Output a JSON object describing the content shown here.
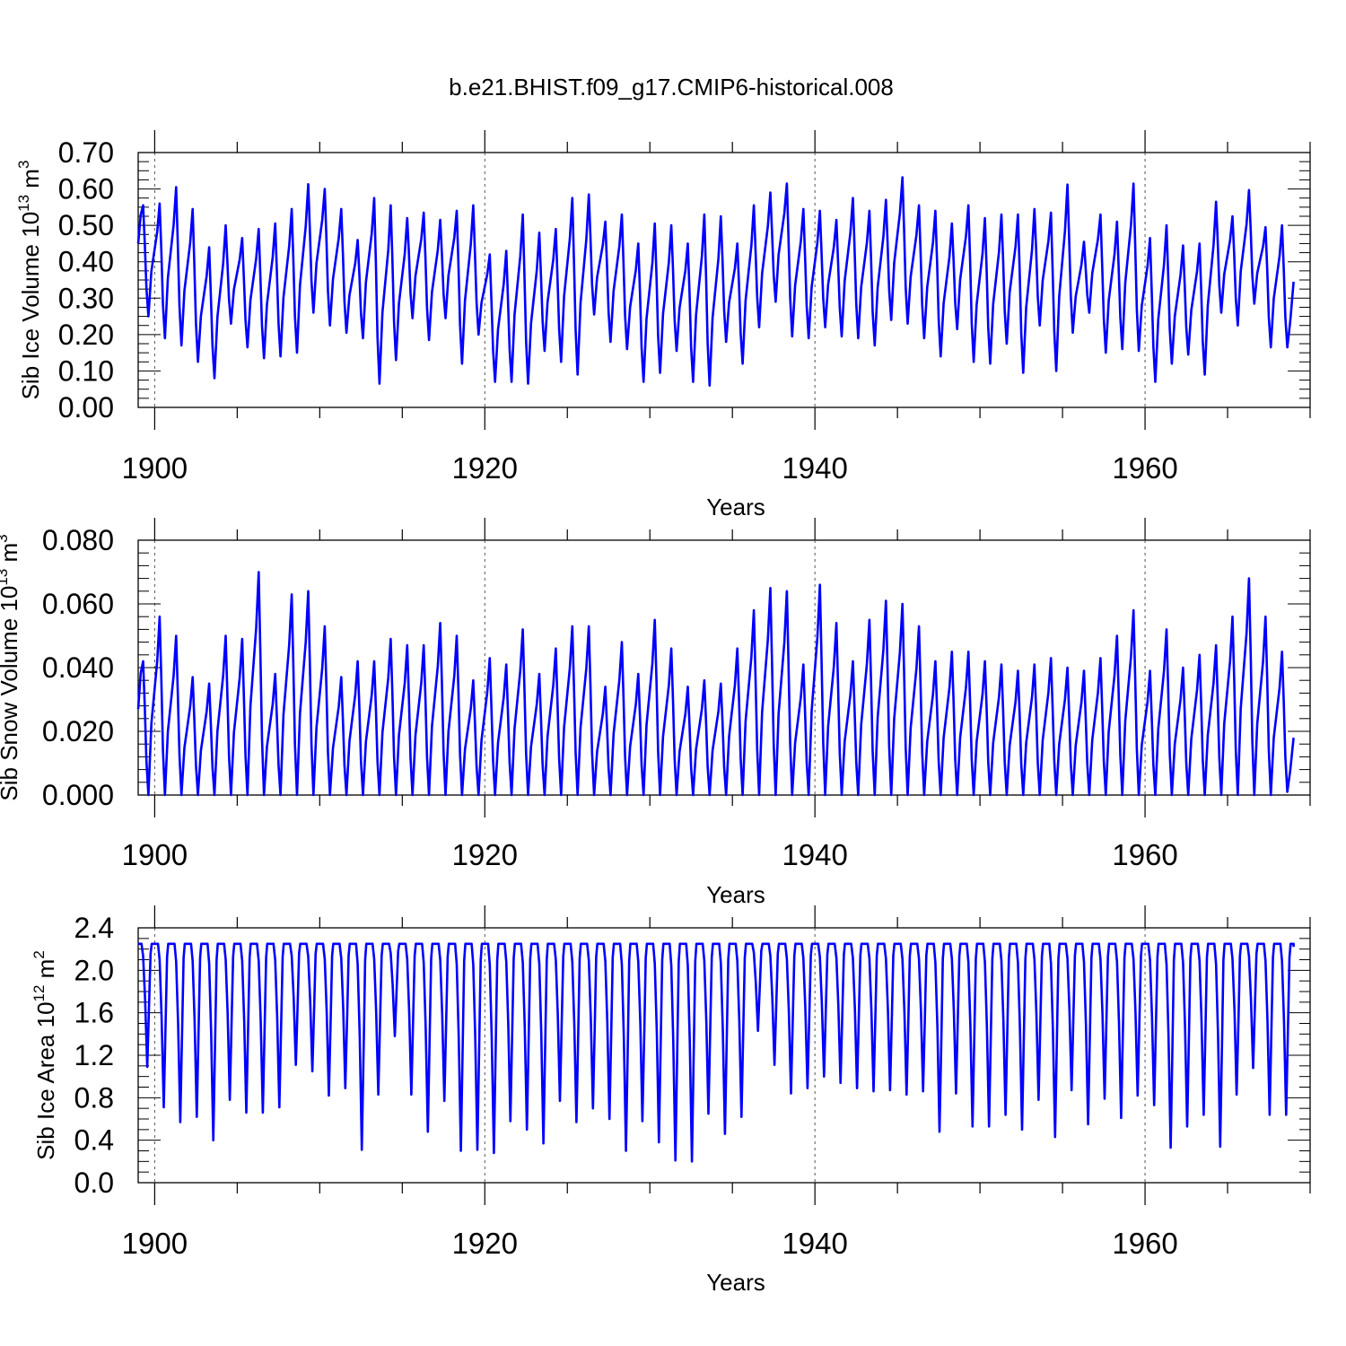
{
  "title": "b.e21.BHIST.f09_g17.CMIP6-historical.008",
  "colors": {
    "line": "#0000ff",
    "axis": "#000000",
    "refline": "#555555"
  },
  "chart_data": [
    {
      "type": "line",
      "ylabel": "Sib Ice Volume 10",
      "ylabel_exp": "13",
      "ylabel_unit": " m",
      "ylabel_unit_exp": "3",
      "xlabel": "Years",
      "xlim": [
        1899.0,
        1970.0
      ],
      "ylim": [
        0.0,
        0.7
      ],
      "yticks": [
        0.0,
        0.1,
        0.2,
        0.3,
        0.4,
        0.5,
        0.6,
        0.7
      ],
      "ytick_labels": [
        "0.00",
        "0.10",
        "0.20",
        "0.30",
        "0.40",
        "0.50",
        "0.60",
        "0.70"
      ],
      "yminor": 0.025,
      "xticks": [
        1900,
        1920,
        1940,
        1960
      ],
      "xtick_labels": [
        "1900",
        "1920",
        "1940",
        "1960"
      ],
      "xminor": 5,
      "seasonal": {
        "phase": "peak_early",
        "start_value": 0.45,
        "annual_max": [
          0.555,
          0.56,
          0.605,
          0.545,
          0.44,
          0.5,
          0.465,
          0.49,
          0.505,
          0.545,
          0.613,
          0.6,
          0.545,
          0.46,
          0.575,
          0.555,
          0.52,
          0.535,
          0.515,
          0.54,
          0.555,
          0.42,
          0.43,
          0.53,
          0.48,
          0.49,
          0.575,
          0.585,
          0.51,
          0.53,
          0.45,
          0.505,
          0.5,
          0.45,
          0.53,
          0.525,
          0.45,
          0.555,
          0.59,
          0.615,
          0.545,
          0.54,
          0.515,
          0.575,
          0.54,
          0.57,
          0.632,
          0.555,
          0.54,
          0.505,
          0.555,
          0.52,
          0.53,
          0.53,
          0.545,
          0.535,
          0.612,
          0.455,
          0.53,
          0.51,
          0.615,
          0.465,
          0.5,
          0.445,
          0.45,
          0.565,
          0.525,
          0.597,
          0.495,
          0.5
        ],
        "annual_min": [
          0.25,
          0.19,
          0.17,
          0.125,
          0.08,
          0.23,
          0.165,
          0.135,
          0.14,
          0.15,
          0.26,
          0.225,
          0.205,
          0.19,
          0.065,
          0.13,
          0.245,
          0.185,
          0.245,
          0.12,
          0.2,
          0.07,
          0.07,
          0.065,
          0.155,
          0.125,
          0.09,
          0.255,
          0.18,
          0.16,
          0.07,
          0.095,
          0.155,
          0.07,
          0.06,
          0.18,
          0.12,
          0.22,
          0.29,
          0.195,
          0.19,
          0.22,
          0.195,
          0.19,
          0.17,
          0.24,
          0.23,
          0.19,
          0.14,
          0.215,
          0.125,
          0.12,
          0.175,
          0.095,
          0.225,
          0.1,
          0.205,
          0.26,
          0.15,
          0.16,
          0.155,
          0.07,
          0.12,
          0.145,
          0.09,
          0.26,
          0.225,
          0.285,
          0.165,
          0.165
        ],
        "end_value": 0.345
      }
    },
    {
      "type": "line",
      "ylabel": "Sib Snow Volume 10",
      "ylabel_exp": "13",
      "ylabel_unit": " m",
      "ylabel_unit_exp": "3",
      "xlabel": "Years",
      "xlim": [
        1899.0,
        1970.0
      ],
      "ylim": [
        0.0,
        0.08
      ],
      "yticks": [
        0.0,
        0.02,
        0.04,
        0.06,
        0.08
      ],
      "ytick_labels": [
        "0.000",
        "0.020",
        "0.040",
        "0.060",
        "0.080"
      ],
      "yminor": 0.004,
      "xticks": [
        1900,
        1920,
        1940,
        1960
      ],
      "xtick_labels": [
        "1900",
        "1920",
        "1940",
        "1960"
      ],
      "xminor": 5,
      "seasonal": {
        "phase": "peak_early",
        "start_value": 0.027,
        "annual_max": [
          0.042,
          0.056,
          0.05,
          0.037,
          0.035,
          0.05,
          0.049,
          0.07,
          0.038,
          0.063,
          0.064,
          0.053,
          0.037,
          0.042,
          0.042,
          0.049,
          0.047,
          0.047,
          0.054,
          0.05,
          0.036,
          0.043,
          0.041,
          0.052,
          0.038,
          0.046,
          0.053,
          0.053,
          0.034,
          0.048,
          0.038,
          0.055,
          0.046,
          0.034,
          0.036,
          0.035,
          0.046,
          0.058,
          0.065,
          0.064,
          0.041,
          0.066,
          0.054,
          0.042,
          0.055,
          0.061,
          0.06,
          0.053,
          0.042,
          0.045,
          0.045,
          0.042,
          0.041,
          0.039,
          0.041,
          0.043,
          0.04,
          0.039,
          0.043,
          0.05,
          0.058,
          0.039,
          0.052,
          0.04,
          0.044,
          0.047,
          0.056,
          0.068,
          0.056,
          0.045
        ],
        "annual_min": [
          0.0,
          0.0,
          0.0,
          0.0,
          0.0,
          0.0,
          0.0,
          0.0,
          0.0,
          0.0,
          0.0,
          0.0,
          0.0,
          0.0,
          0.0,
          0.0,
          0.0,
          0.0,
          0.0,
          0.0,
          0.0,
          0.0,
          0.0,
          0.0,
          0.0,
          0.0,
          0.0,
          0.0,
          0.0,
          0.0,
          0.0,
          0.0,
          0.0,
          0.0,
          0.0,
          0.0,
          0.0,
          0.0,
          0.0,
          0.0,
          0.0,
          0.0,
          0.0,
          0.0,
          0.0,
          0.0,
          0.0,
          0.0,
          0.0,
          0.0,
          0.0,
          0.0,
          0.0,
          0.0,
          0.0,
          0.0,
          0.0,
          0.0,
          0.0,
          0.0,
          0.0,
          0.0,
          0.0,
          0.0,
          0.0,
          0.0,
          0.0,
          0.0,
          0.0,
          0.001
        ],
        "end_value": 0.018
      }
    },
    {
      "type": "line",
      "ylabel": "Sib Ice Area 10",
      "ylabel_exp": "12",
      "ylabel_unit": " m",
      "ylabel_unit_exp": "2",
      "xlabel": "Years",
      "xlim": [
        1899.0,
        1970.0
      ],
      "ylim": [
        0.0,
        2.4
      ],
      "yticks": [
        0.0,
        0.4,
        0.8,
        1.2,
        1.6,
        2.0,
        2.4
      ],
      "ytick_labels": [
        "0.0",
        "0.4",
        "0.8",
        "1.2",
        "1.6",
        "2.0",
        "2.4"
      ],
      "yminor": 0.1,
      "xticks": [
        1900,
        1920,
        1940,
        1960
      ],
      "xtick_labels": [
        "1900",
        "1920",
        "1940",
        "1960"
      ],
      "xminor": 5,
      "seasonal": {
        "phase": "plateau",
        "start_value": 2.25,
        "annual_max": [
          2.25,
          2.25,
          2.25,
          2.25,
          2.25,
          2.25,
          2.25,
          2.25,
          2.25,
          2.25,
          2.25,
          2.25,
          2.25,
          2.25,
          2.25,
          2.25,
          2.25,
          2.25,
          2.25,
          2.25,
          2.25,
          2.25,
          2.25,
          2.25,
          2.25,
          2.25,
          2.25,
          2.25,
          2.25,
          2.25,
          2.25,
          2.25,
          2.25,
          2.25,
          2.25,
          2.25,
          2.25,
          2.25,
          2.25,
          2.25,
          2.25,
          2.25,
          2.25,
          2.25,
          2.25,
          2.25,
          2.25,
          2.25,
          2.25,
          2.25,
          2.25,
          2.25,
          2.25,
          2.25,
          2.25,
          2.25,
          2.25,
          2.25,
          2.25,
          2.25,
          2.25,
          2.25,
          2.25,
          2.25,
          2.25,
          2.25,
          2.25,
          2.25,
          2.25,
          2.25
        ],
        "annual_min": [
          1.09,
          0.71,
          0.57,
          0.62,
          0.4,
          0.78,
          0.66,
          0.66,
          0.71,
          1.11,
          1.05,
          0.82,
          0.89,
          0.31,
          0.83,
          1.38,
          0.83,
          0.48,
          0.77,
          0.3,
          0.31,
          0.28,
          0.58,
          0.5,
          0.37,
          0.77,
          0.57,
          0.7,
          0.6,
          0.3,
          0.58,
          0.38,
          0.21,
          0.2,
          0.65,
          0.46,
          0.62,
          1.43,
          1.11,
          0.84,
          0.89,
          1.0,
          0.94,
          0.89,
          0.86,
          0.87,
          0.83,
          0.86,
          0.48,
          0.84,
          0.53,
          0.53,
          0.64,
          0.5,
          0.78,
          0.43,
          0.87,
          0.55,
          0.79,
          0.61,
          0.82,
          0.73,
          0.33,
          0.53,
          0.64,
          0.34,
          0.83,
          1.08,
          0.64,
          0.64
        ],
        "end_value": 2.22
      }
    }
  ]
}
